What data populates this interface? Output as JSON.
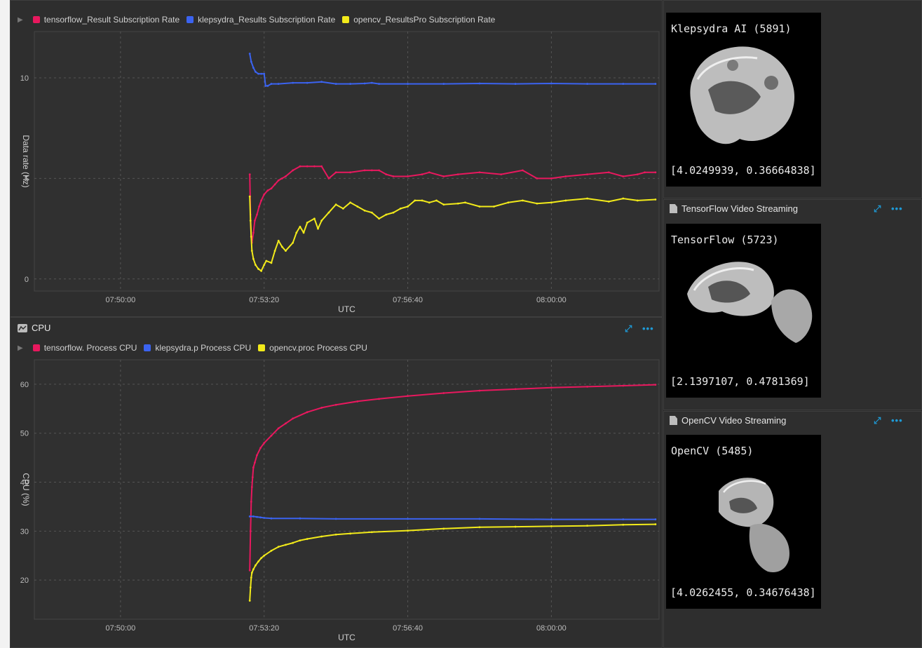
{
  "colors": {
    "tensorflow": "#e8185e",
    "klepsydra": "#3b63f0",
    "opencv": "#f2ea1a",
    "accent": "#1e9ad6"
  },
  "chart_data": [
    {
      "type": "line",
      "legend": [
        "tensorflow_Result Subscription Rate",
        "klepsydra_Results Subscription Rate",
        "opencv_ResultsPro Subscription Rate"
      ],
      "xlabel": "UTC",
      "ylabel": "Data rate (Hz)",
      "xticks": [
        "07:50:00",
        "07:53:20",
        "07:56:40",
        "08:00:00"
      ],
      "xtick_values": [
        0,
        200,
        400,
        600
      ],
      "xlim": [
        -120,
        750
      ],
      "yticks": [
        "0",
        "5",
        "10"
      ],
      "ytick_values": [
        0,
        5,
        10
      ],
      "ylim": [
        -0.6,
        12.3
      ],
      "series": [
        {
          "name": "tensorflow_Result Subscription Rate",
          "color": "#e8185e",
          "x": [
            180,
            181,
            182,
            183,
            185,
            187,
            190,
            193,
            196,
            200,
            205,
            210,
            215,
            220,
            225,
            230,
            240,
            250,
            260,
            270,
            280,
            290,
            300,
            320,
            340,
            350,
            360,
            370,
            380,
            400,
            420,
            430,
            450,
            470,
            500,
            530,
            560,
            580,
            600,
            620,
            650,
            680,
            700,
            720,
            730,
            745
          ],
          "y": [
            5.2,
            3.2,
            2.1,
            1.8,
            2.3,
            2.9,
            3.2,
            3.6,
            3.9,
            4.2,
            4.4,
            4.5,
            4.7,
            4.9,
            5.0,
            5.1,
            5.4,
            5.6,
            5.6,
            5.6,
            5.6,
            5.0,
            5.3,
            5.3,
            5.4,
            5.4,
            5.4,
            5.2,
            5.1,
            5.1,
            5.2,
            5.3,
            5.1,
            5.2,
            5.3,
            5.2,
            5.4,
            5.0,
            5.0,
            5.1,
            5.2,
            5.3,
            5.1,
            5.2,
            5.3,
            5.3
          ]
        },
        {
          "name": "klepsydra_Results Subscription Rate",
          "color": "#3b63f0",
          "x": [
            180,
            182,
            185,
            188,
            192,
            196,
            200,
            202,
            205,
            210,
            220,
            240,
            260,
            280,
            300,
            320,
            340,
            350,
            360,
            400,
            450,
            500,
            550,
            600,
            650,
            700,
            745
          ],
          "y": [
            11.2,
            10.8,
            10.5,
            10.3,
            10.2,
            10.2,
            10.2,
            9.6,
            9.6,
            9.7,
            9.7,
            9.75,
            9.75,
            9.8,
            9.7,
            9.7,
            9.72,
            9.75,
            9.7,
            9.7,
            9.7,
            9.72,
            9.7,
            9.72,
            9.7,
            9.7,
            9.7
          ]
        },
        {
          "name": "opencv_ResultsPro Subscription Rate",
          "color": "#f2ea1a",
          "x": [
            180,
            181,
            182,
            183,
            185,
            188,
            192,
            196,
            200,
            203,
            210,
            215,
            220,
            225,
            230,
            240,
            245,
            250,
            255,
            260,
            270,
            275,
            280,
            290,
            300,
            310,
            320,
            330,
            340,
            350,
            360,
            370,
            380,
            390,
            400,
            410,
            420,
            430,
            440,
            450,
            470,
            480,
            500,
            520,
            540,
            560,
            580,
            600,
            620,
            650,
            680,
            700,
            720,
            745
          ],
          "y": [
            4.1,
            2.9,
            2.1,
            1.4,
            1.0,
            0.7,
            0.5,
            0.4,
            0.7,
            0.9,
            0.8,
            1.4,
            1.9,
            1.6,
            1.4,
            1.8,
            2.3,
            2.6,
            2.3,
            2.8,
            3.0,
            2.5,
            2.9,
            3.3,
            3.7,
            3.5,
            3.8,
            3.6,
            3.4,
            3.3,
            3.0,
            3.2,
            3.3,
            3.5,
            3.6,
            3.9,
            3.9,
            3.8,
            3.9,
            3.7,
            3.75,
            3.8,
            3.6,
            3.6,
            3.8,
            3.9,
            3.75,
            3.8,
            3.9,
            4.0,
            3.85,
            4.0,
            3.9,
            3.95
          ]
        }
      ]
    },
    {
      "type": "line",
      "legend": [
        "tensorflow. Process CPU",
        "klepsydra.p Process CPU",
        "opencv.proc Process CPU"
      ],
      "xlabel": "UTC",
      "ylabel": "CPU (%)",
      "xticks": [
        "07:50:00",
        "07:53:20",
        "07:56:40",
        "08:00:00"
      ],
      "xtick_values": [
        0,
        200,
        400,
        600
      ],
      "xlim": [
        -120,
        750
      ],
      "yticks": [
        "20",
        "30",
        "40",
        "50",
        "60"
      ],
      "ytick_values": [
        20,
        30,
        40,
        50,
        60
      ],
      "ylim": [
        12,
        65
      ],
      "series": [
        {
          "name": "tensorflow. Process CPU",
          "color": "#e8185e",
          "x": [
            180,
            181,
            182,
            183,
            184,
            185,
            187,
            190,
            195,
            200,
            210,
            220,
            230,
            240,
            260,
            280,
            300,
            330,
            360,
            400,
            450,
            500,
            550,
            600,
            650,
            700,
            745
          ],
          "y": [
            22,
            30,
            36,
            39,
            41,
            43,
            44,
            45.5,
            47,
            48,
            49.5,
            51,
            52,
            53,
            54.3,
            55.2,
            55.8,
            56.5,
            57,
            57.6,
            58.2,
            58.7,
            59,
            59.3,
            59.5,
            59.7,
            59.9
          ]
        },
        {
          "name": "klepsydra.p Process CPU",
          "color": "#3b63f0",
          "x": [
            180,
            185,
            190,
            195,
            200,
            210,
            250,
            300,
            400,
            500,
            600,
            700,
            745
          ],
          "y": [
            33,
            33,
            32.9,
            32.8,
            32.7,
            32.6,
            32.6,
            32.5,
            32.5,
            32.5,
            32.4,
            32.4,
            32.4
          ]
        },
        {
          "name": "opencv.proc Process CPU",
          "color": "#f2ea1a",
          "x": [
            180,
            181,
            182,
            183,
            185,
            188,
            192,
            196,
            200,
            210,
            220,
            230,
            240,
            250,
            260,
            280,
            300,
            320,
            350,
            400,
            450,
            500,
            550,
            600,
            650,
            700,
            745
          ],
          "y": [
            15.8,
            18.5,
            20.5,
            21.5,
            22.2,
            23,
            23.8,
            24.5,
            25,
            26,
            26.8,
            27.2,
            27.6,
            28.1,
            28.4,
            28.9,
            29.3,
            29.5,
            29.8,
            30.1,
            30.5,
            30.8,
            30.9,
            31,
            31.1,
            31.3,
            31.4
          ]
        }
      ]
    }
  ],
  "cpu_panel": {
    "title": "CPU",
    "expand_glyph": "⤢",
    "more_glyph": "•••"
  },
  "videos": [
    {
      "title": "Klepsydra AI (5891)",
      "coords": "[4.0249939, 0.36664838]"
    },
    {
      "header": "TensorFlow Video Streaming",
      "title": "TensorFlow (5723)",
      "coords": "[2.1397107, 0.4781369]",
      "expand_glyph": "⤢",
      "more_glyph": "•••"
    },
    {
      "header": "OpenCV Video Streaming",
      "title": "OpenCV (5485)",
      "coords": "[4.0262455, 0.34676438]",
      "expand_glyph": "⤢",
      "more_glyph": "•••"
    }
  ]
}
